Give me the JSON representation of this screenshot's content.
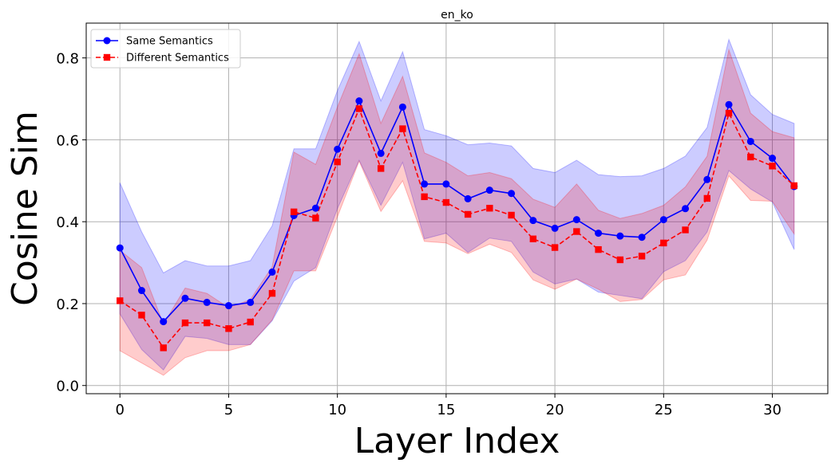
{
  "chart_data": {
    "type": "line",
    "title": "en_ko",
    "xlabel": "Layer Index",
    "ylabel": "Cosine Sim",
    "xlim": [
      -1.55,
      32.55
    ],
    "ylim": [
      -0.02,
      0.885
    ],
    "xticks": [
      0,
      5,
      10,
      15,
      20,
      25,
      30
    ],
    "xtick_labels": [
      "0",
      "5",
      "10",
      "15",
      "20",
      "25",
      "30"
    ],
    "yticks": [
      0.0,
      0.2,
      0.4,
      0.6,
      0.8
    ],
    "ytick_labels": [
      "0.0",
      "0.2",
      "0.4",
      "0.6",
      "0.8"
    ],
    "grid": true,
    "legend_position": "top-left",
    "x": [
      0,
      1,
      2,
      3,
      4,
      5,
      6,
      7,
      8,
      9,
      10,
      11,
      12,
      13,
      14,
      15,
      16,
      17,
      18,
      19,
      20,
      21,
      22,
      23,
      24,
      25,
      26,
      27,
      28,
      29,
      30,
      31
    ],
    "series": [
      {
        "name": "Same Semantics",
        "color": "#0000ff",
        "line_style": "solid",
        "marker": "circle",
        "values": [
          0.336,
          0.232,
          0.156,
          0.213,
          0.203,
          0.195,
          0.203,
          0.277,
          0.415,
          0.433,
          0.577,
          0.695,
          0.567,
          0.68,
          0.492,
          0.492,
          0.456,
          0.477,
          0.469,
          0.403,
          0.384,
          0.405,
          0.372,
          0.365,
          0.362,
          0.405,
          0.432,
          0.503,
          0.686,
          0.596,
          0.555,
          0.486
        ],
        "band_upper": [
          0.495,
          0.375,
          0.275,
          0.305,
          0.292,
          0.292,
          0.305,
          0.39,
          0.578,
          0.578,
          0.72,
          0.84,
          0.695,
          0.815,
          0.625,
          0.61,
          0.588,
          0.592,
          0.585,
          0.53,
          0.52,
          0.55,
          0.515,
          0.51,
          0.512,
          0.53,
          0.56,
          0.63,
          0.845,
          0.71,
          0.662,
          0.64
        ],
        "band_lower": [
          0.175,
          0.088,
          0.038,
          0.12,
          0.115,
          0.1,
          0.1,
          0.158,
          0.255,
          0.288,
          0.432,
          0.55,
          0.44,
          0.545,
          0.358,
          0.372,
          0.325,
          0.36,
          0.352,
          0.277,
          0.248,
          0.26,
          0.228,
          0.22,
          0.212,
          0.278,
          0.305,
          0.375,
          0.525,
          0.48,
          0.448,
          0.332
        ]
      },
      {
        "name": "Different Semantics",
        "color": "#ff0000",
        "line_style": "dashed",
        "marker": "square",
        "values": [
          0.207,
          0.172,
          0.092,
          0.153,
          0.153,
          0.139,
          0.155,
          0.225,
          0.424,
          0.409,
          0.546,
          0.676,
          0.53,
          0.627,
          0.461,
          0.447,
          0.418,
          0.433,
          0.416,
          0.358,
          0.337,
          0.376,
          0.332,
          0.307,
          0.316,
          0.348,
          0.38,
          0.457,
          0.665,
          0.558,
          0.536,
          0.488
        ],
        "band_upper": [
          0.33,
          0.288,
          0.15,
          0.238,
          0.225,
          0.19,
          0.21,
          0.29,
          0.57,
          0.54,
          0.68,
          0.81,
          0.64,
          0.755,
          0.568,
          0.545,
          0.512,
          0.52,
          0.505,
          0.455,
          0.435,
          0.492,
          0.428,
          0.408,
          0.42,
          0.44,
          0.485,
          0.56,
          0.82,
          0.665,
          0.62,
          0.605
        ],
        "band_lower": [
          0.085,
          0.055,
          0.025,
          0.068,
          0.085,
          0.085,
          0.1,
          0.16,
          0.28,
          0.28,
          0.412,
          0.548,
          0.425,
          0.5,
          0.352,
          0.348,
          0.322,
          0.345,
          0.325,
          0.258,
          0.235,
          0.26,
          0.235,
          0.205,
          0.21,
          0.258,
          0.27,
          0.355,
          0.512,
          0.452,
          0.45,
          0.37
        ]
      }
    ]
  }
}
